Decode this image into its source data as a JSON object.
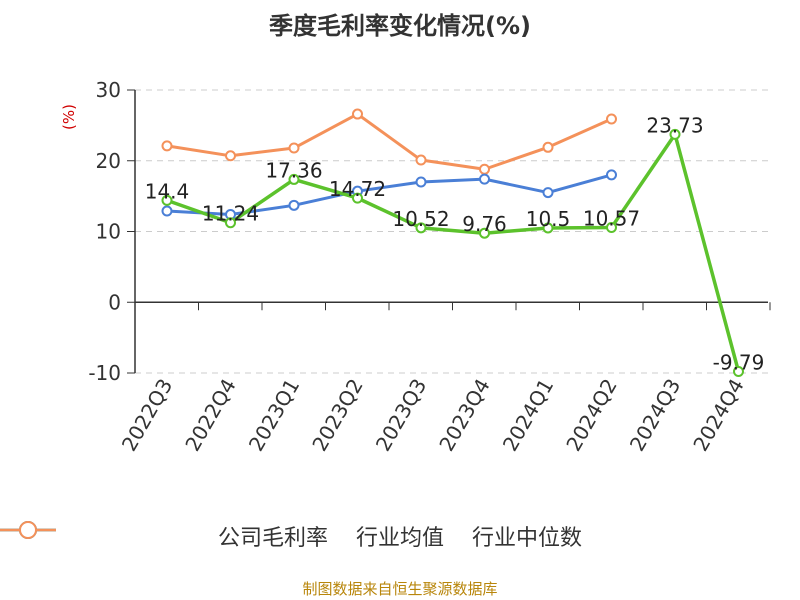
{
  "chart_data": {
    "type": "line",
    "title": "季度毛利率变化情况(%)",
    "ylabel": "(%)",
    "xlabel": "",
    "categories": [
      "2022Q3",
      "2022Q4",
      "2023Q1",
      "2023Q2",
      "2023Q3",
      "2023Q4",
      "2024Q1",
      "2024Q2",
      "2024Q3",
      "2024Q4"
    ],
    "ylim": [
      -10,
      30
    ],
    "yticks": [
      30,
      20,
      10,
      0,
      -10
    ],
    "grid": true,
    "legend_position": "bottom",
    "series": [
      {
        "name": "公司毛利率",
        "color": "#5cc22c",
        "values": [
          14.4,
          11.24,
          17.36,
          14.72,
          10.52,
          9.76,
          10.5,
          10.57,
          23.73,
          -9.79
        ],
        "labels": [
          "14.4",
          "11.24",
          "17.36",
          "14.72",
          "10.52",
          "9.76",
          "10.5",
          "10.57",
          "23.73",
          "-9.79"
        ]
      },
      {
        "name": "行业均值",
        "color": "#4a7fd6",
        "values": [
          12.9,
          12.4,
          13.7,
          15.7,
          17.0,
          17.4,
          15.5,
          18.0,
          null,
          null
        ]
      },
      {
        "name": "行业中位数",
        "color": "#f4915a",
        "values": [
          22.1,
          20.7,
          21.8,
          26.6,
          20.1,
          18.8,
          21.9,
          25.9,
          null,
          null
        ]
      }
    ]
  },
  "source": "制图数据来自恒生聚源数据库"
}
